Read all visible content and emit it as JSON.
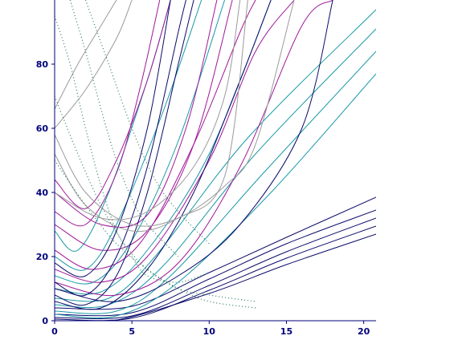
{
  "colors": {
    "axis": "#00007a",
    "navy": "#0a0a6a",
    "teal": "#1a9aa6",
    "magenta": "#a0189a",
    "gray": "#9a9a9a",
    "dots": "#2a7a5a"
  },
  "chart_data": {
    "type": "line",
    "title": "",
    "xlabel": "",
    "ylabel": "",
    "xlim": [
      0,
      20.8
    ],
    "ylim": [
      0,
      100
    ],
    "x_ticks": [
      0,
      5,
      10,
      15,
      20
    ],
    "y_ticks": [
      0,
      20,
      40,
      60,
      80
    ],
    "x_tick_labels": [
      "0",
      "5",
      "10",
      "15",
      "20"
    ],
    "y_tick_labels": [
      "0",
      "20",
      "40",
      "60",
      "80"
    ],
    "grid": false,
    "legend": "none",
    "series": [
      {
        "color_key": "navy",
        "style": "solid",
        "points": [
          [
            0,
            4
          ],
          [
            5,
            4.5
          ],
          [
            10,
            15
          ],
          [
            15,
            26
          ],
          [
            20.8,
            38.5
          ]
        ]
      },
      {
        "color_key": "navy",
        "style": "solid",
        "points": [
          [
            0,
            2
          ],
          [
            5,
            2.5
          ],
          [
            10,
            13
          ],
          [
            15,
            24
          ],
          [
            20.8,
            34.5
          ]
        ]
      },
      {
        "color_key": "navy",
        "style": "solid",
        "points": [
          [
            0,
            1
          ],
          [
            5,
            1.5
          ],
          [
            10,
            11
          ],
          [
            15,
            21.5
          ],
          [
            20.8,
            32
          ]
        ]
      },
      {
        "color_key": "navy",
        "style": "solid",
        "points": [
          [
            0,
            0.5
          ],
          [
            5,
            0.8
          ],
          [
            10,
            9.5
          ],
          [
            15,
            19.5
          ],
          [
            20.8,
            29.5
          ]
        ]
      },
      {
        "color_key": "navy",
        "style": "solid",
        "points": [
          [
            0,
            0
          ],
          [
            4,
            0.2
          ],
          [
            10,
            8.5
          ],
          [
            15,
            17.5
          ],
          [
            20.8,
            27
          ]
        ]
      },
      {
        "color_key": "teal",
        "style": "solid",
        "points": [
          [
            0,
            2
          ],
          [
            4,
            1.5
          ],
          [
            8,
            12
          ],
          [
            14,
            40
          ],
          [
            20.8,
            77
          ]
        ]
      },
      {
        "color_key": "teal",
        "style": "solid",
        "points": [
          [
            0,
            3
          ],
          [
            4,
            3
          ],
          [
            7.5,
            14
          ],
          [
            13.5,
            46
          ],
          [
            20.8,
            84
          ]
        ]
      },
      {
        "color_key": "teal",
        "style": "solid",
        "points": [
          [
            0,
            5
          ],
          [
            3.5,
            5
          ],
          [
            7,
            17
          ],
          [
            13,
            52
          ],
          [
            20.8,
            91
          ]
        ]
      },
      {
        "color_key": "teal",
        "style": "solid",
        "points": [
          [
            0,
            7
          ],
          [
            3.5,
            7
          ],
          [
            6.5,
            20
          ],
          [
            12.5,
            57
          ],
          [
            20.8,
            97
          ]
        ]
      },
      {
        "color_key": "teal",
        "style": "solid",
        "points": [
          [
            0,
            10
          ],
          [
            3,
            9
          ],
          [
            6,
            22
          ],
          [
            10,
            52
          ],
          [
            14,
            100
          ]
        ]
      },
      {
        "color_key": "teal",
        "style": "solid",
        "points": [
          [
            0,
            14
          ],
          [
            2.5,
            12
          ],
          [
            5,
            25
          ],
          [
            8,
            56
          ],
          [
            11,
            100
          ]
        ]
      },
      {
        "color_key": "teal",
        "style": "solid",
        "points": [
          [
            0,
            20
          ],
          [
            2,
            16
          ],
          [
            4,
            30
          ],
          [
            7,
            65
          ],
          [
            9.5,
            100
          ]
        ]
      },
      {
        "color_key": "teal",
        "style": "solid",
        "points": [
          [
            0,
            28
          ],
          [
            1.5,
            22
          ],
          [
            3.5,
            40
          ],
          [
            6,
            75
          ],
          [
            7.5,
            100
          ]
        ]
      },
      {
        "color_key": "magenta",
        "style": "solid",
        "points": [
          [
            0,
            12
          ],
          [
            4,
            8
          ],
          [
            8,
            18
          ],
          [
            12,
            48
          ],
          [
            16,
            92
          ],
          [
            18,
            100
          ]
        ]
      },
      {
        "color_key": "magenta",
        "style": "solid",
        "points": [
          [
            0,
            16
          ],
          [
            3,
            12
          ],
          [
            6,
            20
          ],
          [
            10,
            50
          ],
          [
            13,
            84
          ],
          [
            15.5,
            100
          ]
        ]
      },
      {
        "color_key": "magenta",
        "style": "solid",
        "points": [
          [
            0,
            22
          ],
          [
            2.5,
            16
          ],
          [
            5.5,
            24
          ],
          [
            9,
            55
          ],
          [
            12,
            90
          ],
          [
            13,
            100
          ]
        ]
      },
      {
        "color_key": "magenta",
        "style": "solid",
        "points": [
          [
            0,
            30
          ],
          [
            3,
            22
          ],
          [
            6,
            28
          ],
          [
            9,
            55
          ],
          [
            11.5,
            100
          ]
        ]
      },
      {
        "color_key": "magenta",
        "style": "solid",
        "points": [
          [
            0,
            40
          ],
          [
            3,
            30
          ],
          [
            6,
            33
          ],
          [
            8.5,
            60
          ],
          [
            10.5,
            100
          ]
        ]
      },
      {
        "color_key": "magenta",
        "style": "solid",
        "points": [
          [
            0,
            44
          ],
          [
            2,
            35
          ],
          [
            4,
            50
          ],
          [
            6,
            75
          ],
          [
            7.5,
            100
          ]
        ]
      },
      {
        "color_key": "magenta",
        "style": "solid",
        "points": [
          [
            0,
            34
          ],
          [
            2,
            30
          ],
          [
            4,
            46
          ],
          [
            5.5,
            72
          ],
          [
            6.8,
            100
          ]
        ]
      },
      {
        "color_key": "navy",
        "style": "solid",
        "points": [
          [
            0,
            8
          ],
          [
            2,
            5
          ],
          [
            4,
            14
          ],
          [
            6,
            40
          ],
          [
            8,
            80
          ],
          [
            9,
            100
          ]
        ]
      },
      {
        "color_key": "navy",
        "style": "solid",
        "points": [
          [
            0,
            12
          ],
          [
            2,
            8
          ],
          [
            4,
            20
          ],
          [
            6,
            48
          ],
          [
            8,
            90
          ],
          [
            8.5,
            100
          ]
        ]
      },
      {
        "color_key": "navy",
        "style": "solid",
        "points": [
          [
            0,
            18
          ],
          [
            2,
            14
          ],
          [
            4,
            28
          ],
          [
            6,
            60
          ],
          [
            7.5,
            100
          ]
        ]
      },
      {
        "color_key": "navy",
        "style": "solid",
        "points": [
          [
            0,
            6
          ],
          [
            3,
            4
          ],
          [
            6,
            16
          ],
          [
            9,
            40
          ],
          [
            12,
            75
          ],
          [
            14,
            100
          ]
        ]
      },
      {
        "color_key": "navy",
        "style": "solid",
        "points": [
          [
            0,
            10
          ],
          [
            4,
            6
          ],
          [
            8,
            14
          ],
          [
            12,
            30
          ],
          [
            16,
            60
          ],
          [
            18,
            100
          ]
        ]
      },
      {
        "color_key": "gray",
        "style": "solid",
        "points": [
          [
            0,
            58
          ],
          [
            2,
            40
          ],
          [
            5,
            30
          ],
          [
            8,
            32
          ],
          [
            11,
            42
          ],
          [
            13,
            55
          ],
          [
            15.5,
            100
          ]
        ]
      },
      {
        "color_key": "gray",
        "style": "solid",
        "points": [
          [
            0,
            52
          ],
          [
            2,
            36
          ],
          [
            5,
            28
          ],
          [
            8,
            32
          ],
          [
            11,
            45
          ],
          [
            12.5,
            100
          ]
        ]
      },
      {
        "color_key": "gray",
        "style": "solid",
        "points": [
          [
            0,
            60
          ],
          [
            2,
            72
          ],
          [
            4,
            88
          ],
          [
            5,
            100
          ]
        ]
      },
      {
        "color_key": "gray",
        "style": "solid",
        "points": [
          [
            0,
            66
          ],
          [
            1.5,
            80
          ],
          [
            3,
            92
          ],
          [
            4,
            100
          ]
        ]
      },
      {
        "color_key": "gray",
        "style": "solid",
        "points": [
          [
            0,
            40
          ],
          [
            3,
            32
          ],
          [
            6,
            34
          ],
          [
            9,
            48
          ],
          [
            11,
            70
          ],
          [
            12,
            100
          ]
        ]
      },
      {
        "color_key": "dots",
        "style": "dotted",
        "points": [
          [
            0,
            95
          ],
          [
            1,
            80
          ],
          [
            2,
            60
          ],
          [
            3,
            42
          ],
          [
            4,
            28
          ],
          [
            5,
            20
          ],
          [
            6,
            14
          ],
          [
            8,
            12
          ],
          [
            10,
            15
          ]
        ]
      },
      {
        "color_key": "dots",
        "style": "dotted",
        "points": [
          [
            0,
            70
          ],
          [
            1.5,
            52
          ],
          [
            3,
            36
          ],
          [
            4.5,
            24
          ],
          [
            6,
            16
          ],
          [
            8,
            10
          ],
          [
            10,
            8
          ],
          [
            13,
            6
          ]
        ]
      },
      {
        "color_key": "dots",
        "style": "dotted",
        "points": [
          [
            0,
            50
          ],
          [
            2,
            36
          ],
          [
            4,
            24
          ],
          [
            6,
            16
          ],
          [
            8,
            10
          ],
          [
            10,
            6
          ],
          [
            13,
            4
          ]
        ]
      },
      {
        "color_key": "dots",
        "style": "dotted",
        "points": [
          [
            1,
            100
          ],
          [
            2,
            84
          ],
          [
            3,
            66
          ],
          [
            4,
            50
          ],
          [
            5,
            38
          ],
          [
            6,
            30
          ],
          [
            8,
            20
          ]
        ]
      },
      {
        "color_key": "dots",
        "style": "dotted",
        "points": [
          [
            2,
            100
          ],
          [
            3.5,
            80
          ],
          [
            5,
            60
          ],
          [
            6.5,
            44
          ],
          [
            8,
            34
          ],
          [
            10,
            24
          ]
        ]
      }
    ]
  }
}
